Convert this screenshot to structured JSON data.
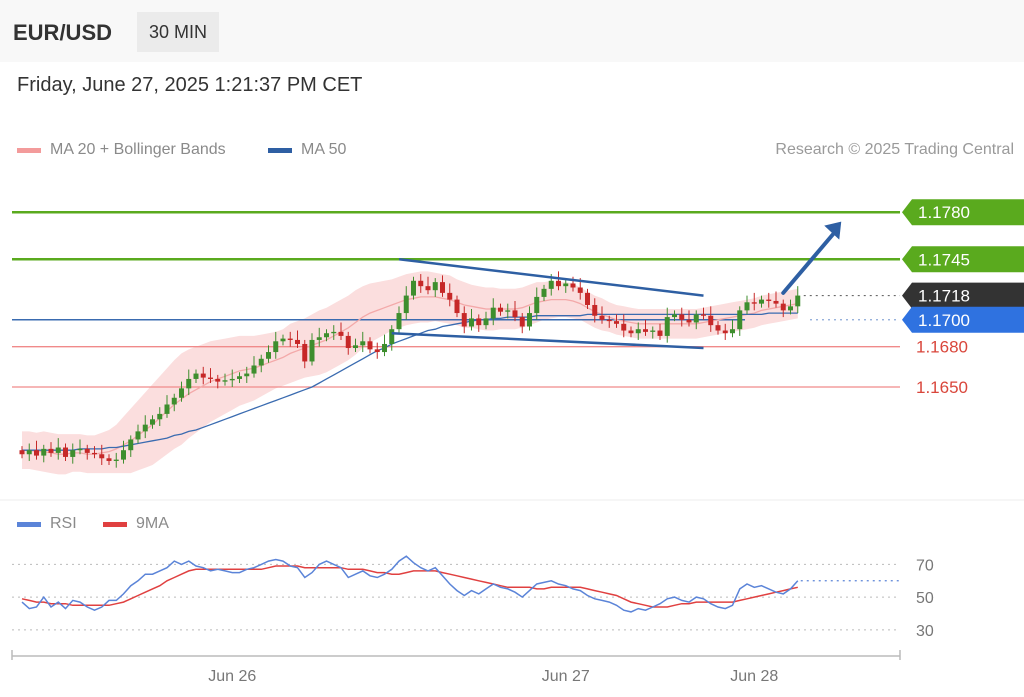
{
  "header": {
    "symbol": "EUR/USD",
    "timeframe": "30 MIN"
  },
  "datetime": "Friday, June 27, 2025 1:21:37 PM CET",
  "credit": "Research © 2025 Trading Central",
  "colors": {
    "support": "#f08a8a",
    "resistance": "#5aaa1e",
    "ma50": "#3a6bb0",
    "bollinger_fill": "#fbdede",
    "bollinger_line": "#f3a9a9",
    "candle_up": "#3e8e2e",
    "candle_down": "#c62828",
    "rsi": "#5b84d8",
    "rsi_ma": "#e04040",
    "arrow": "#2e5fa3",
    "price_tag": "#333333",
    "pivot_tag": "#2f72e0"
  },
  "chart_data": [
    {
      "type": "candlestick",
      "legend": [
        {
          "label": "MA 20 + Bollinger Bands",
          "color": "#f39b9b"
        },
        {
          "label": "MA 50",
          "color": "#2e5fa3"
        }
      ],
      "ylim": [
        1.1592,
        1.1798
      ],
      "x_ticks": [
        "Jun 26",
        "Jun 27",
        "Jun 28"
      ],
      "x_tick_index": [
        29,
        75,
        101
      ],
      "levels": [
        {
          "label": "1.1780",
          "value": 1.178,
          "kind": "resistance"
        },
        {
          "label": "1.1745",
          "value": 1.1745,
          "kind": "resistance"
        },
        {
          "label": "1.1718",
          "value": 1.1718,
          "kind": "last_price"
        },
        {
          "label": "1.1700",
          "value": 1.17,
          "kind": "pivot"
        },
        {
          "label": "1.1680",
          "value": 1.168,
          "kind": "support"
        },
        {
          "label": "1.1650",
          "value": 1.165,
          "kind": "support"
        }
      ],
      "closes": [
        1.16,
        1.1603,
        1.1599,
        1.1604,
        1.1601,
        1.1605,
        1.1598,
        1.1603,
        1.1604,
        1.1601,
        1.16,
        1.1597,
        1.1595,
        1.1596,
        1.1603,
        1.1611,
        1.1617,
        1.1622,
        1.1626,
        1.163,
        1.1637,
        1.1642,
        1.1649,
        1.1656,
        1.166,
        1.1657,
        1.1656,
        1.1654,
        1.1655,
        1.1656,
        1.1658,
        1.166,
        1.1666,
        1.1671,
        1.1676,
        1.1684,
        1.1686,
        1.1685,
        1.1682,
        1.1669,
        1.1685,
        1.1687,
        1.169,
        1.1691,
        1.1688,
        1.1679,
        1.1681,
        1.1684,
        1.1678,
        1.1676,
        1.1682,
        1.1693,
        1.1705,
        1.1718,
        1.1729,
        1.1725,
        1.1722,
        1.1728,
        1.172,
        1.1715,
        1.1705,
        1.1695,
        1.1701,
        1.1696,
        1.1701,
        1.1709,
        1.1706,
        1.1707,
        1.1702,
        1.1695,
        1.1705,
        1.1717,
        1.1723,
        1.1729,
        1.1725,
        1.1727,
        1.1724,
        1.172,
        1.1711,
        1.1703,
        1.17,
        1.1699,
        1.1697,
        1.1692,
        1.169,
        1.1693,
        1.1691,
        1.1692,
        1.1688,
        1.1702,
        1.1704,
        1.17,
        1.1698,
        1.1704,
        1.1703,
        1.1696,
        1.1692,
        1.169,
        1.1693,
        1.1707,
        1.1713,
        1.1712,
        1.1715,
        1.1714,
        1.1712,
        1.1707,
        1.171,
        1.1718
      ],
      "ma20": [
        1.1603,
        1.1603,
        1.1602,
        1.1602,
        1.1601,
        1.16,
        1.16,
        1.1601,
        1.1601,
        1.16,
        1.16,
        1.1601,
        1.1602,
        1.1604,
        1.1607,
        1.161,
        1.1614,
        1.1618,
        1.1622,
        1.1627,
        1.1632,
        1.1637,
        1.1641,
        1.1645,
        1.1648,
        1.1651,
        1.1654,
        1.1656,
        1.1658,
        1.166,
        1.1662,
        1.1663,
        1.1664,
        1.1666,
        1.1668,
        1.167,
        1.1672,
        1.1675,
        1.1677,
        1.1679,
        1.1681,
        1.1683,
        1.1685,
        1.1688,
        1.1691,
        1.1694,
        1.1698,
        1.1702,
        1.1705,
        1.1707,
        1.1709,
        1.1711,
        1.1713,
        1.1715,
        1.1716,
        1.1717,
        1.1717,
        1.1717,
        1.1716,
        1.1715,
        1.1713,
        1.1711,
        1.171,
        1.1709,
        1.1708,
        1.1708,
        1.1708,
        1.1708,
        1.1708,
        1.1709,
        1.1711,
        1.1713,
        1.1714,
        1.1715,
        1.1715,
        1.1715,
        1.1714,
        1.1712,
        1.1709,
        1.1706,
        1.1704,
        1.1702,
        1.17,
        1.1699,
        1.1698,
        1.1697,
        1.1697,
        1.1697,
        1.1697,
        1.1697,
        1.1697,
        1.1697,
        1.1697,
        1.1697,
        1.1698,
        1.1699,
        1.17,
        1.1701,
        1.1702,
        1.1703,
        1.1704,
        1.1705,
        1.1707,
        1.1708,
        1.1709,
        1.171,
        1.1711,
        1.1712
      ],
      "ma50": [
        1.1603,
        1.1603,
        1.1603,
        1.1603,
        1.1603,
        1.1603,
        1.1603,
        1.1603,
        1.1604,
        1.1604,
        1.1604,
        1.1604,
        1.1605,
        1.1605,
        1.1606,
        1.1607,
        1.1608,
        1.1609,
        1.161,
        1.1611,
        1.1612,
        1.1614,
        1.1615,
        1.1617,
        1.1618,
        1.162,
        1.1622,
        1.1624,
        1.1626,
        1.1628,
        1.163,
        1.1632,
        1.1634,
        1.1636,
        1.1638,
        1.164,
        1.1642,
        1.1644,
        1.1646,
        1.1648,
        1.165,
        1.1653,
        1.1656,
        1.1659,
        1.1662,
        1.1665,
        1.1668,
        1.1671,
        1.1674,
        1.1677,
        1.1679,
        1.1682,
        1.1684,
        1.1686,
        1.1688,
        1.169,
        1.1692,
        1.1693,
        1.1695,
        1.1696,
        1.1697,
        1.1698,
        1.1699,
        1.17,
        1.17,
        1.1701,
        1.1701,
        1.1702,
        1.1702,
        1.1702,
        1.1702,
        1.1703,
        1.1703,
        1.1703,
        1.1703,
        1.1703,
        1.1703,
        1.1703,
        1.1704,
        1.1704,
        1.1704,
        1.1704,
        1.1704,
        1.1704,
        1.1704,
        1.1704,
        1.1704,
        1.1704,
        1.1704,
        1.1704,
        1.1704,
        1.1704,
        1.1704,
        1.1704,
        1.1704,
        1.1704,
        1.1704,
        1.1704,
        1.1704,
        1.1704,
        1.1704,
        1.1704,
        1.1704,
        1.1705,
        1.1705,
        1.1705,
        1.1705,
        1.1705
      ],
      "bb_half_width": [
        0.0014,
        0.0014,
        0.0014,
        0.0015,
        0.0015,
        0.0015,
        0.0015,
        0.0014,
        0.0014,
        0.0014,
        0.0014,
        0.0015,
        0.0016,
        0.0018,
        0.0021,
        0.0024,
        0.0026,
        0.0028,
        0.003,
        0.0031,
        0.0032,
        0.0033,
        0.0034,
        0.0033,
        0.0032,
        0.0031,
        0.003,
        0.0029,
        0.0028,
        0.0027,
        0.0026,
        0.0025,
        0.0024,
        0.0023,
        0.0022,
        0.0021,
        0.0021,
        0.0022,
        0.0022,
        0.0022,
        0.0023,
        0.0024,
        0.0024,
        0.0024,
        0.0024,
        0.0024,
        0.0024,
        0.0023,
        0.0022,
        0.0021,
        0.002,
        0.0019,
        0.0019,
        0.0019,
        0.0019,
        0.0019,
        0.0019,
        0.0018,
        0.0018,
        0.0018,
        0.0017,
        0.0017,
        0.0016,
        0.0016,
        0.0016,
        0.0016,
        0.0015,
        0.0015,
        0.0015,
        0.0015,
        0.0015,
        0.0015,
        0.0014,
        0.0014,
        0.0013,
        0.0013,
        0.0013,
        0.0012,
        0.0012,
        0.0012,
        0.0012,
        0.0011,
        0.0011,
        0.0011,
        0.0011,
        0.0011,
        0.0011,
        0.0011,
        0.0011,
        0.0011,
        0.0011,
        0.0011,
        0.0011,
        0.0011,
        0.0011,
        0.0011,
        0.0011,
        0.0011,
        0.0011,
        0.0011,
        0.0011,
        0.0011,
        0.0011,
        0.0011,
        0.0011,
        0.0011,
        0.0011,
        0.0011
      ],
      "channel_lines": [
        {
          "from": [
            52,
            1.1745
          ],
          "to": [
            94,
            1.1718
          ]
        },
        {
          "from": [
            51,
            1.169
          ],
          "to": [
            94,
            1.1679
          ]
        }
      ],
      "arrow": {
        "from": [
          105,
          1.172
        ],
        "to": [
          113,
          1.1773
        ]
      }
    },
    {
      "type": "line",
      "legend": [
        {
          "label": "RSI",
          "color": "#5b84d8"
        },
        {
          "label": "9MA",
          "color": "#e04040"
        }
      ],
      "ylim": [
        22,
        80
      ],
      "y_ticks": [
        70,
        50,
        30
      ],
      "series": [
        {
          "name": "RSI",
          "values": [
            47,
            43,
            44,
            50,
            44,
            47,
            43,
            48,
            47,
            44,
            42,
            44,
            48,
            48,
            52,
            57,
            60,
            64,
            64,
            66,
            68,
            72,
            70,
            72,
            69,
            68,
            66,
            67,
            66,
            65,
            65,
            67,
            68,
            70,
            72,
            73,
            72,
            69,
            68,
            62,
            65,
            70,
            72,
            70,
            68,
            62,
            64,
            66,
            63,
            62,
            64,
            67,
            72,
            75,
            71,
            68,
            66,
            68,
            63,
            58,
            54,
            51,
            54,
            52,
            55,
            58,
            56,
            55,
            53,
            50,
            54,
            58,
            59,
            60,
            58,
            57,
            55,
            54,
            51,
            49,
            48,
            47,
            45,
            42,
            41,
            43,
            42,
            44,
            46,
            49,
            50,
            48,
            47,
            50,
            49,
            46,
            44,
            43,
            45,
            55,
            58,
            56,
            57,
            55,
            53,
            52,
            55,
            60
          ]
        },
        {
          "name": "9MA",
          "values": [
            49,
            48,
            47,
            47,
            46,
            46,
            46,
            45,
            45,
            45,
            45,
            45,
            45,
            46,
            47,
            49,
            51,
            53,
            55,
            57,
            60,
            62,
            64,
            66,
            67,
            67,
            67,
            67,
            67,
            67,
            67,
            67,
            67,
            67,
            68,
            69,
            69,
            69,
            69,
            68,
            68,
            68,
            68,
            68,
            68,
            67,
            67,
            67,
            66,
            65,
            65,
            64,
            64,
            65,
            66,
            66,
            66,
            66,
            65,
            64,
            63,
            62,
            61,
            60,
            59,
            58,
            57,
            56,
            56,
            56,
            56,
            55,
            55,
            56,
            56,
            56,
            56,
            56,
            55,
            54,
            53,
            52,
            51,
            49,
            47,
            46,
            45,
            44,
            44,
            44,
            45,
            46,
            46,
            47,
            47,
            47,
            47,
            47,
            47,
            48,
            49,
            50,
            51,
            52,
            53,
            54,
            55,
            56
          ]
        }
      ]
    }
  ]
}
